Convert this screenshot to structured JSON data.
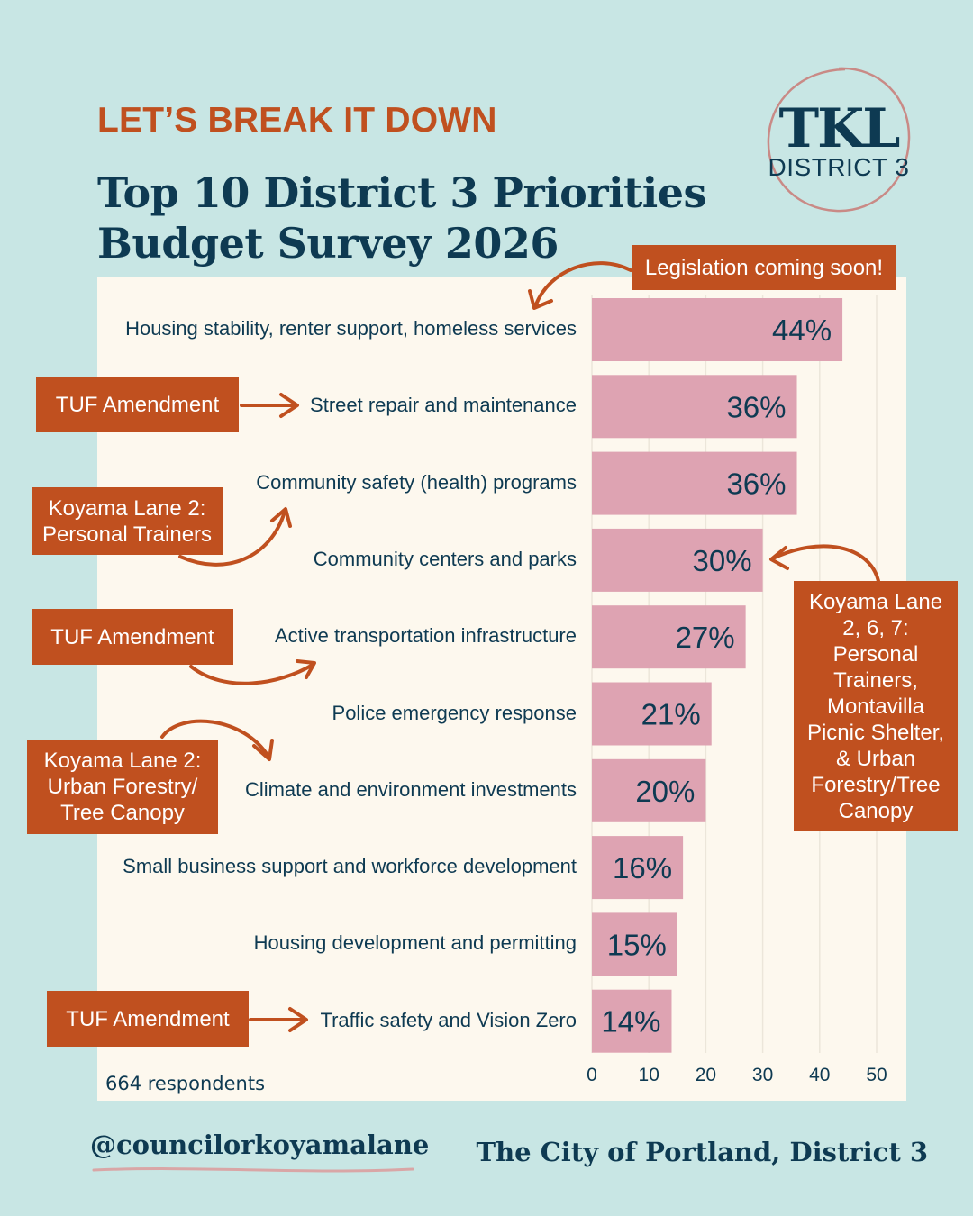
{
  "header": {
    "kicker": "LET’S BREAK IT DOWN",
    "title_line1": "Top 10 District 3 Priorities",
    "title_line2": "Budget Survey 2026"
  },
  "logo": {
    "main": "TKL",
    "sub": "DISTRICT 3"
  },
  "chart_data": {
    "type": "bar",
    "orientation": "horizontal",
    "categories": [
      "Housing stability, renter support, homeless services",
      "Street repair and maintenance",
      "Community safety (health) programs",
      "Community centers and parks",
      "Active transportation infrastructure",
      "Police emergency response",
      "Climate and environment investments",
      "Small business support and workforce development",
      "Housing development and permitting",
      "Traffic safety and Vision Zero"
    ],
    "values": [
      44,
      36,
      36,
      30,
      27,
      21,
      20,
      16,
      15,
      14
    ],
    "value_labels": [
      "44%",
      "36%",
      "36%",
      "30%",
      "27%",
      "21%",
      "20%",
      "16%",
      "15%",
      "14%"
    ],
    "x_ticks": [
      0,
      10,
      20,
      30,
      40,
      50
    ],
    "xlim": [
      0,
      50
    ],
    "grid": "vertical",
    "bar_color": "#dea3b2",
    "footnote": "664 respondents"
  },
  "annotations": {
    "legislation": "Legislation coming soon!",
    "tuf_1": "TUF Amendment",
    "koyama_trainers": "Koyama Lane 2: Personal Trainers",
    "tuf_2": "TUF Amendment",
    "koyama_forestry": "Koyama Lane 2: Urban Forestry/ Tree Canopy",
    "tuf_3": "TUF Amendment",
    "koyama_multi": "Koyama Lane 2, 6, 7: Personal Trainers, Montavilla Picnic Shelter, & Urban Forestry/Tree Canopy"
  },
  "footer": {
    "handle": "@councilorkoyamalane",
    "city": "The City of Portland, District 3"
  },
  "colors": {
    "background": "#c8e6e4",
    "panel": "#fdf8ee",
    "accent": "#c0501f",
    "navy": "#0e3a52",
    "bar": "#dea3b2",
    "logo_ring": "#c98a86"
  }
}
